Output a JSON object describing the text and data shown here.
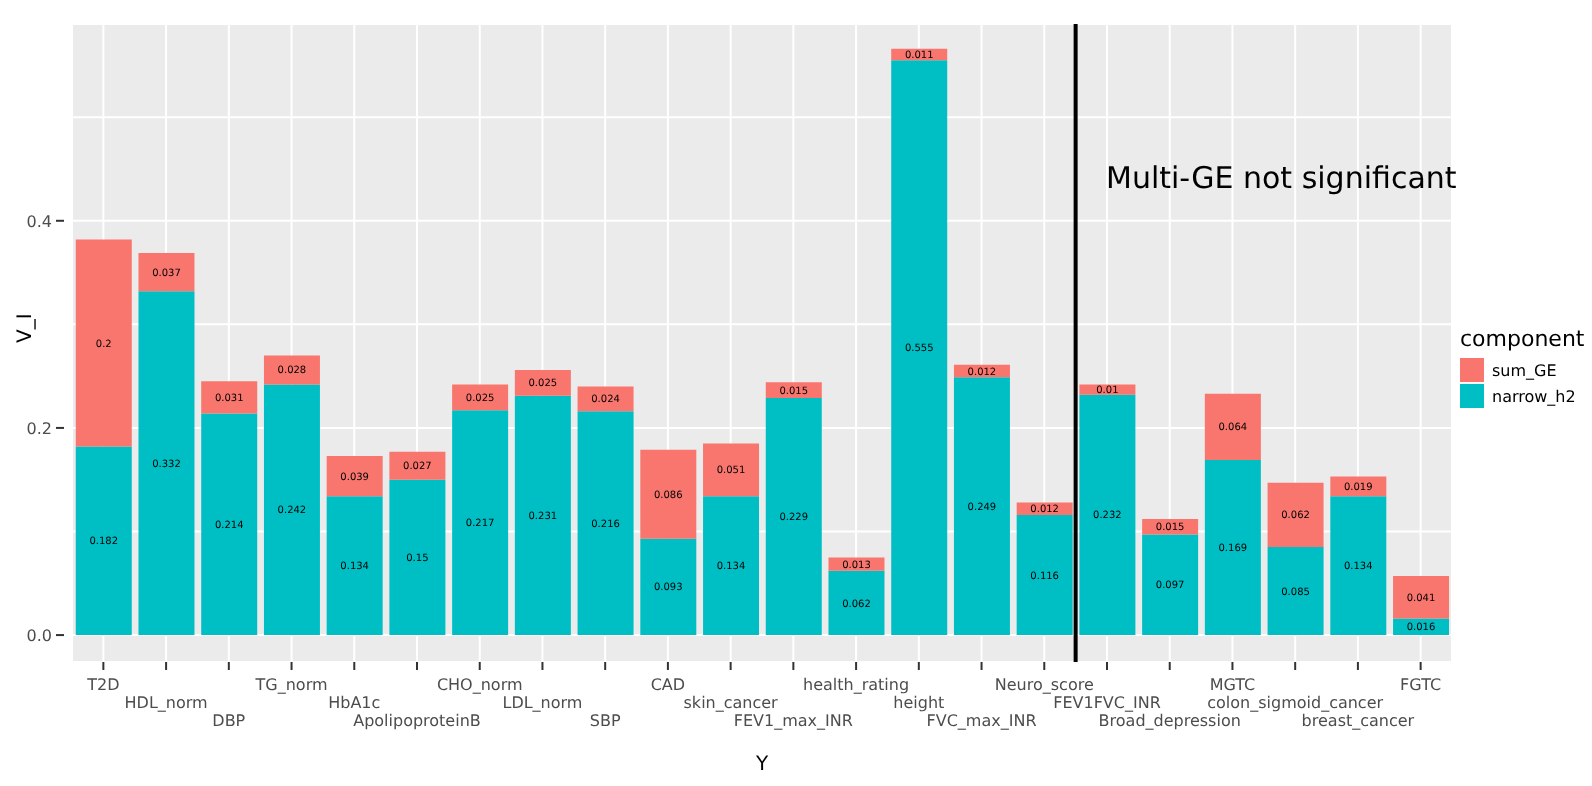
{
  "chart_data": {
    "type": "bar",
    "stacked": true,
    "xlabel": "Y",
    "ylabel": "V_I",
    "legend_title": "component",
    "legend": "right",
    "grid": true,
    "data_labels": true,
    "categories": [
      "T2D",
      "HDL_norm",
      "DBP",
      "TG_norm",
      "HbA1c",
      "ApolipoproteinB",
      "CHO_norm",
      "LDL_norm",
      "SBP",
      "CAD",
      "skin_cancer",
      "FEV1_max_INR",
      "health_rating",
      "height",
      "FVC_max_INR",
      "Neuro_score",
      "FEV1FVC_INR",
      "Broad_depression",
      "MGTC",
      "colon_sigmoid_cancer",
      "breast_cancer",
      "FGTC"
    ],
    "series": [
      {
        "name": "narrow_h2",
        "color": "#00bfc4",
        "values": [
          0.182,
          0.332,
          0.214,
          0.242,
          0.134,
          0.15,
          0.217,
          0.231,
          0.216,
          0.093,
          0.134,
          0.229,
          0.062,
          0.555,
          0.249,
          0.116,
          0.232,
          0.097,
          0.169,
          0.085,
          0.134,
          0.016
        ]
      },
      {
        "name": "sum_GE",
        "color": "#f8766d",
        "values": [
          0.2,
          0.037,
          0.031,
          0.028,
          0.039,
          0.027,
          0.025,
          0.025,
          0.024,
          0.086,
          0.051,
          0.015,
          0.013,
          0.011,
          0.012,
          0.012,
          0.01,
          0.015,
          0.064,
          0.062,
          0.019,
          0.041
        ]
      }
    ],
    "ylim": [
      -0.026,
      0.59
    ],
    "yticks": [
      {
        "value": 0,
        "label": "0.0"
      },
      {
        "value": 0.1,
        "label": null
      },
      {
        "value": 0.2,
        "label": "0.2"
      },
      {
        "value": 0.3,
        "label": null
      },
      {
        "value": 0.4,
        "label": "0.4"
      },
      {
        "value": 0.5,
        "label": null
      }
    ],
    "ref_lines": [
      {
        "axis": "x",
        "value": "FEV1FVC_INR",
        "label": null,
        "color": "#000000"
      }
    ],
    "annotations": [
      "Multi-GE not significant"
    ]
  }
}
